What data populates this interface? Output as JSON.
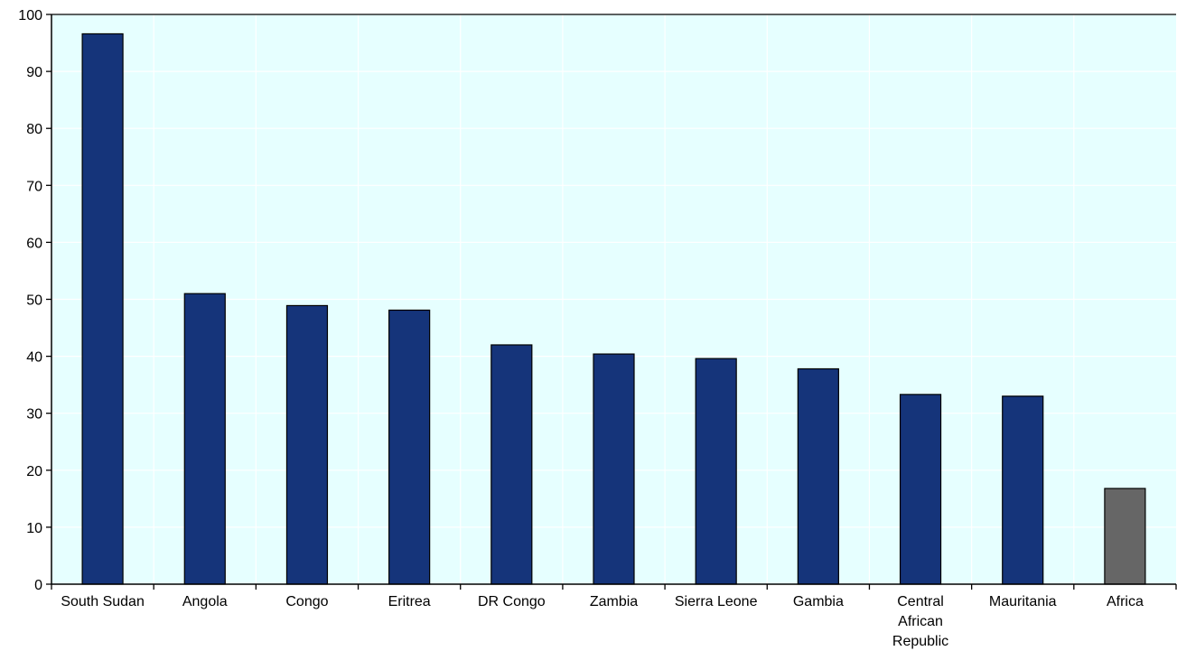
{
  "chart_data": {
    "type": "bar",
    "title": "",
    "xlabel": "",
    "ylabel": "",
    "categories": [
      [
        "South Sudan"
      ],
      [
        "Angola"
      ],
      [
        "Congo"
      ],
      [
        "Eritrea"
      ],
      [
        "DR Congo"
      ],
      [
        "Zambia"
      ],
      [
        "Sierra Leone"
      ],
      [
        "Gambia"
      ],
      [
        "Central",
        "African",
        "Republic"
      ],
      [
        "Mauritania"
      ],
      [
        "Africa"
      ]
    ],
    "values": [
      96.6,
      51.0,
      48.9,
      48.1,
      42.0,
      40.4,
      39.6,
      37.8,
      33.3,
      33.0,
      16.8
    ],
    "ylim": [
      0,
      100
    ],
    "yticks": [
      "0",
      "10",
      "20",
      "30",
      "40",
      "50",
      "60",
      "70",
      "80",
      "90",
      "100"
    ],
    "grid": true,
    "legend": "none",
    "colors": {
      "bar": "#15347a",
      "highlight_bar": "#666666",
      "highlight_category": "Africa",
      "plot_background": "#e6ffff",
      "grid": "#ffffff",
      "axis": "#000000"
    }
  }
}
